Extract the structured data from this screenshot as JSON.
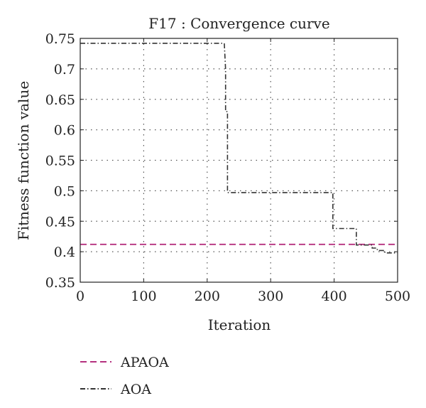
{
  "chart_data": {
    "type": "line",
    "title": "F17 : Convergence curve",
    "xlabel": "Iteration",
    "ylabel": "Fitness function value",
    "xlim": [
      0,
      500
    ],
    "ylim": [
      0.35,
      0.75
    ],
    "xticks": [
      0,
      100,
      200,
      300,
      400,
      500
    ],
    "xtick_labels": [
      "0",
      "100",
      "200",
      "300",
      "400",
      "500"
    ],
    "yticks": [
      0.35,
      0.4,
      0.45,
      0.5,
      0.55,
      0.6,
      0.65,
      0.7,
      0.75
    ],
    "ytick_labels": [
      "0.35",
      "0.4",
      "0.45",
      "0.5",
      "0.55",
      "0.6",
      "0.65",
      "0.7",
      "0.75"
    ],
    "grid": true,
    "legend_position": "bottom-left, below plot",
    "series": [
      {
        "name": "APAOA",
        "color": "#b5307f",
        "style": "dashed",
        "x": [
          0,
          500
        ],
        "y": [
          0.412,
          0.412
        ]
      },
      {
        "name": "AOA",
        "color": "#333333",
        "style": "dash-dot",
        "x": [
          0,
          227,
          229,
          229,
          232,
          232,
          398,
          398,
          435,
          435,
          460,
          460,
          468,
          468,
          480,
          480,
          500
        ],
        "y": [
          0.742,
          0.742,
          0.7,
          0.63,
          0.63,
          0.497,
          0.497,
          0.438,
          0.438,
          0.411,
          0.411,
          0.406,
          0.406,
          0.402,
          0.402,
          0.398,
          0.398
        ]
      }
    ]
  }
}
